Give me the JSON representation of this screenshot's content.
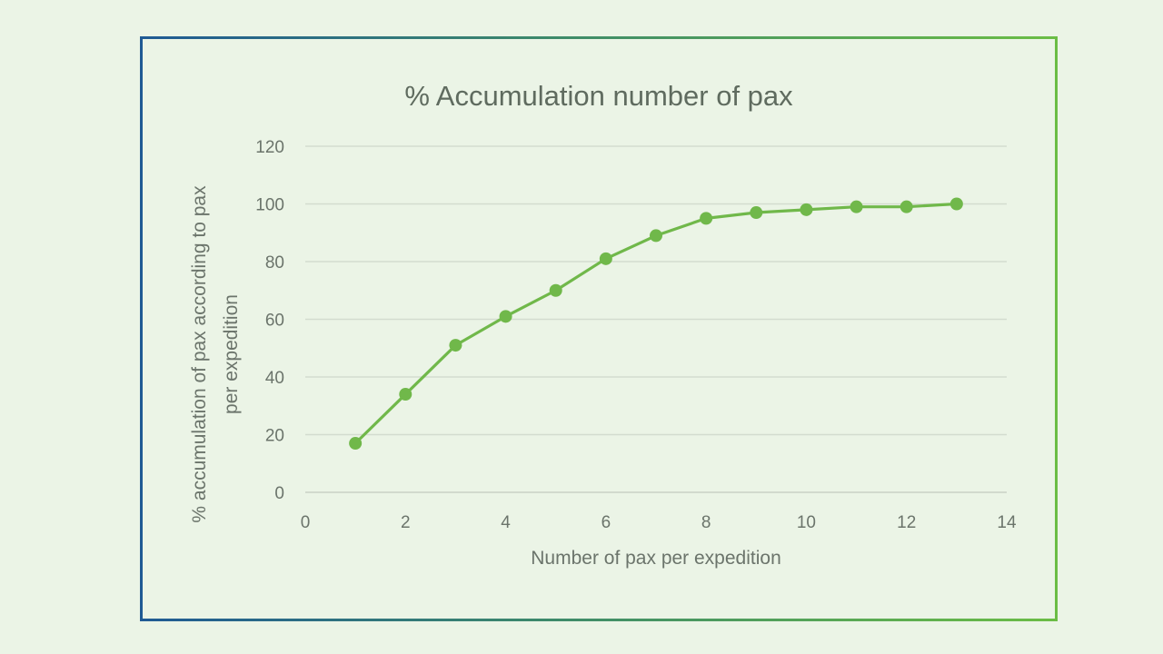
{
  "colors": {
    "series": "#70b84a",
    "background": "#ebf4e6"
  },
  "chart_data": {
    "type": "line",
    "title": "% Accumulation number of pax",
    "xlabel": "Number of pax per expedition",
    "ylabel_lines": [
      "% accumulation of pax according to pax",
      "per expedition"
    ],
    "xlim": [
      0,
      14
    ],
    "ylim": [
      0,
      120
    ],
    "xticks": [
      "0",
      "2",
      "4",
      "6",
      "8",
      "10",
      "12",
      "14"
    ],
    "yticks": [
      "0",
      "20",
      "40",
      "60",
      "80",
      "100",
      "120"
    ],
    "grid": true,
    "markers": true,
    "series": [
      {
        "x": [
          1,
          2,
          3,
          4,
          5,
          6,
          7,
          8,
          9,
          10,
          11,
          12,
          13
        ],
        "y": [
          17,
          34,
          51,
          61,
          70,
          81,
          89,
          95,
          97,
          98,
          99,
          99,
          100
        ]
      }
    ]
  }
}
